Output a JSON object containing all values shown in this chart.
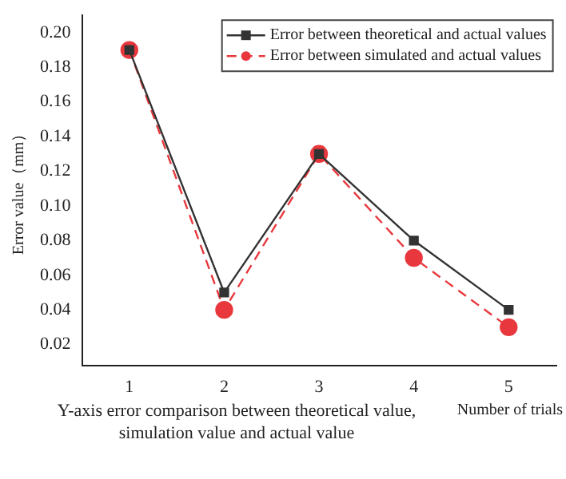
{
  "chart_data": {
    "type": "line",
    "x": [
      1,
      2,
      3,
      4,
      5
    ],
    "xlim": [
      0.5,
      5.5
    ],
    "xticks": [
      1,
      2,
      3,
      4,
      5
    ],
    "ylim": [
      0.008,
      0.21
    ],
    "yticks": [
      {
        "value": 0.02,
        "label": "0.02"
      },
      {
        "value": 0.04,
        "label": "0.04"
      },
      {
        "value": 0.06,
        "label": "0.06"
      },
      {
        "value": 0.08,
        "label": "0.08"
      },
      {
        "value": 0.1,
        "label": "0.10"
      },
      {
        "value": 0.12,
        "label": "0.12"
      },
      {
        "value": 0.14,
        "label": "0.14"
      },
      {
        "value": 0.16,
        "label": "0.16"
      },
      {
        "value": 0.18,
        "label": "0.18"
      },
      {
        "value": 0.2,
        "label": "0.20"
      }
    ],
    "xlabel": "Number of trials",
    "ylabel": "Error value（mm）",
    "annotations": [
      "Y-axis error comparison between theoretical value, simulation value and actual value"
    ],
    "legend": "top right",
    "grid": false,
    "series": [
      {
        "name": "Error between theoretical and actual values",
        "color": "#333333",
        "marker": "square",
        "line_style": "solid",
        "values": [
          0.19,
          0.05,
          0.13,
          0.08,
          0.04
        ]
      },
      {
        "name": "Error between simulated and actual values",
        "color": "#e8383d",
        "marker": "circle",
        "line_style": "dashed",
        "values": [
          0.19,
          0.04,
          0.13,
          0.07,
          0.03
        ]
      }
    ]
  }
}
